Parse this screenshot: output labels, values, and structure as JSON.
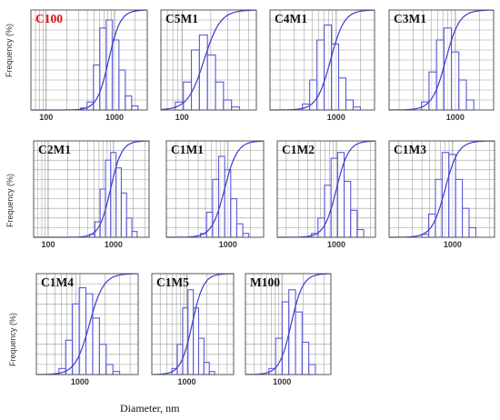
{
  "common": {
    "ylabel": "Frequency (%)",
    "xlabel": "Diameter, nm",
    "colors": {
      "bars": "#5b5bd6",
      "curve": "#3b3bd0",
      "grid": "#9a9a9a",
      "frame": "#555555",
      "title_default": "#111111",
      "title_highlight": "#e01010"
    }
  },
  "chart_data": [
    {
      "type": "bar",
      "title": "C100",
      "title_color": "#e01010",
      "x_scale": "log",
      "xticks": [
        "100",
        "1000"
      ],
      "bins_from": 320,
      "bins_to": 2200,
      "values": [
        2,
        8,
        45,
        82,
        90,
        70,
        40,
        14,
        4
      ],
      "cdf_mid": 820
    },
    {
      "type": "bar",
      "title": "C5M1",
      "x_scale": "log",
      "xticks": [
        "100"
      ],
      "bins_from": 85,
      "bins_to": 400,
      "values": [
        8,
        28,
        60,
        75,
        55,
        28,
        10,
        3
      ],
      "cdf_mid": 170
    },
    {
      "type": "bar",
      "title": "C4M1",
      "x_scale": "log",
      "xticks": [
        "1000"
      ],
      "bins_from": 380,
      "bins_to": 2000,
      "values": [
        6,
        30,
        70,
        85,
        66,
        32,
        10,
        3
      ],
      "cdf_mid": 850
    },
    {
      "type": "bar",
      "title": "C3M1",
      "x_scale": "log",
      "xticks": [
        "1000"
      ],
      "bins_from": 380,
      "bins_to": 1700,
      "values": [
        8,
        38,
        70,
        82,
        58,
        30,
        10
      ],
      "cdf_mid": 760
    },
    {
      "type": "bar",
      "title": "C2M1",
      "x_scale": "log",
      "xticks": [
        "100",
        "1000"
      ],
      "bins_from": 430,
      "bins_to": 2300,
      "values": [
        3,
        16,
        50,
        80,
        88,
        72,
        46,
        20,
        6
      ],
      "cdf_mid": 900
    },
    {
      "type": "bar",
      "title": "C1M1",
      "x_scale": "log",
      "xticks": [
        "1000"
      ],
      "bins_from": 430,
      "bins_to": 1900,
      "values": [
        4,
        26,
        60,
        84,
        70,
        40,
        14,
        4
      ],
      "cdf_mid": 900
    },
    {
      "type": "bar",
      "title": "C1M2",
      "x_scale": "log",
      "xticks": [
        "1000"
      ],
      "bins_from": 450,
      "bins_to": 2400,
      "values": [
        4,
        20,
        54,
        82,
        88,
        58,
        28,
        8
      ],
      "cdf_mid": 1000
    },
    {
      "type": "bar",
      "title": "C1M3",
      "x_scale": "log",
      "xticks": [
        "1000"
      ],
      "bins_from": 400,
      "bins_to": 2000,
      "values": [
        3,
        24,
        60,
        88,
        86,
        60,
        30,
        10
      ],
      "cdf_mid": 800
    },
    {
      "type": "bar",
      "title": "C1M4",
      "x_scale": "log",
      "xticks": [
        "1000"
      ],
      "bins_from": 560,
      "bins_to": 3000,
      "values": [
        6,
        34,
        70,
        86,
        80,
        56,
        30,
        10,
        3
      ],
      "cdf_mid": 1300
    },
    {
      "type": "bar",
      "title": "C1M5",
      "x_scale": "log",
      "xticks": [
        "1000"
      ],
      "bins_from": 600,
      "bins_to": 2600,
      "values": [
        6,
        30,
        66,
        84,
        66,
        36,
        12,
        3
      ],
      "cdf_mid": 1200
    },
    {
      "type": "bar",
      "title": "M100",
      "x_scale": "log",
      "xticks": [
        "1000"
      ],
      "bins_from": 650,
      "bins_to": 3000,
      "values": [
        6,
        36,
        72,
        84,
        62,
        32,
        10
      ],
      "cdf_mid": 1350
    }
  ]
}
